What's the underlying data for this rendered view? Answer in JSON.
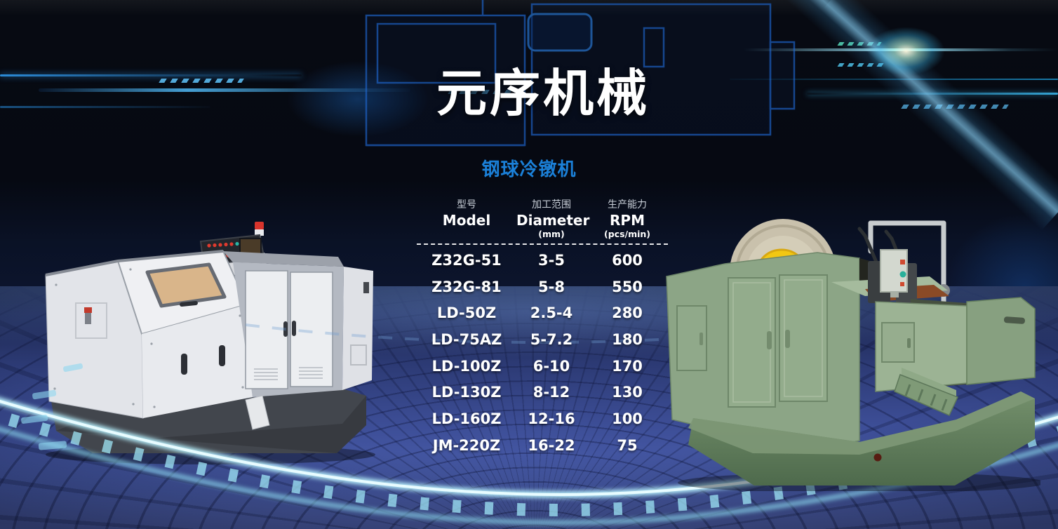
{
  "hero": {
    "brand_title": "元序机械",
    "product_subtitle": "钢球冷镦机"
  },
  "spec_table": {
    "columns": [
      {
        "label_zh": "型号",
        "label_en": "Model",
        "unit": ""
      },
      {
        "label_zh": "加工范围",
        "label_en": "Diameter",
        "unit": "(mm)"
      },
      {
        "label_zh": "生产能力",
        "label_en": "RPM",
        "unit": "(pcs/min)"
      }
    ],
    "rows": [
      {
        "model": "Z32G-51",
        "diameter": "3-5",
        "rpm": "600"
      },
      {
        "model": "Z32G-81",
        "diameter": "5-8",
        "rpm": "550"
      },
      {
        "model": "LD-50Z",
        "diameter": "2.5-4",
        "rpm": "280"
      },
      {
        "model": "LD-75AZ",
        "diameter": "5-7.2",
        "rpm": "180"
      },
      {
        "model": "LD-100Z",
        "diameter": "6-10",
        "rpm": "170"
      },
      {
        "model": "LD-130Z",
        "diameter": "8-12",
        "rpm": "130"
      },
      {
        "model": "LD-160Z",
        "diameter": "12-16",
        "rpm": "100"
      },
      {
        "model": "JM-220Z",
        "diameter": "16-22",
        "rpm": "75"
      }
    ]
  },
  "images": {
    "left_machine": "white-cold-heading-machine-photo",
    "right_machine": "green-cold-heading-machine-photo",
    "background": "blue-wireframe-machine-tech-backdrop"
  },
  "colors": {
    "subtitle_blue": "#1b80d8",
    "background_navy": "#0a1124",
    "floor_blue": "#3d4e97",
    "glow_cyan": "#aeeefc",
    "machine_green": "#8ca586",
    "machine_white": "#e8eaee",
    "text_white": "#ffffff"
  }
}
